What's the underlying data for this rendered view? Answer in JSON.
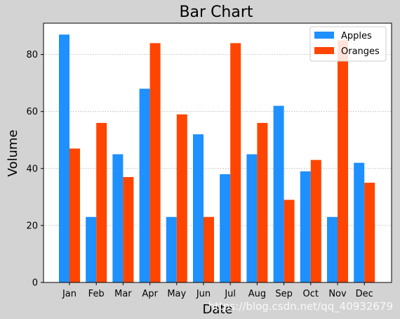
{
  "chart_data": {
    "type": "bar",
    "title": "Bar Chart",
    "xlabel": "Date",
    "ylabel": "Volume",
    "categories": [
      "Jan",
      "Feb",
      "Mar",
      "Apr",
      "May",
      "Jun",
      "Jul",
      "Aug",
      "Sep",
      "Oct",
      "Nov",
      "Dec"
    ],
    "series": [
      {
        "name": "Apples",
        "color": "#1e90ff",
        "values": [
          87,
          23,
          45,
          68,
          23,
          52,
          38,
          45,
          62,
          39,
          23,
          42
        ]
      },
      {
        "name": "Oranges",
        "color": "#ff4500",
        "values": [
          47,
          56,
          37,
          84,
          59,
          23,
          84,
          56,
          29,
          43,
          85,
          35
        ]
      }
    ],
    "ylim": [
      0,
      91
    ],
    "yticks": [
      0,
      20,
      40,
      60,
      80
    ],
    "grid": "horizontal dotted",
    "legend_position": "top-right"
  },
  "watermark": "https://blog.csdn.net/qq_40932679"
}
